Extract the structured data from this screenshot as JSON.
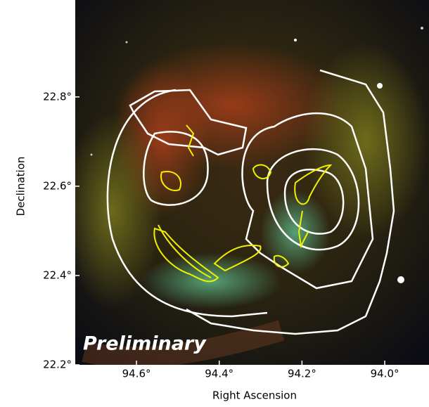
{
  "chart_data": {
    "type": "image",
    "xlabel": "Right Ascension",
    "ylabel": "Declination",
    "annotation": "Preliminary",
    "xlim": [
      94.748,
      93.893
    ],
    "ylim": [
      22.2,
      23.017
    ],
    "xticks": [
      {
        "value": 94.6,
        "label": "94.6°"
      },
      {
        "value": 94.4,
        "label": "94.4°"
      },
      {
        "value": 94.2,
        "label": "94.2°"
      },
      {
        "value": 94.0,
        "label": "94.0°"
      }
    ],
    "yticks": [
      {
        "value": 22.2,
        "label": "22.2°"
      },
      {
        "value": 22.4,
        "label": "22.4°"
      },
      {
        "value": 22.6,
        "label": "22.6°"
      },
      {
        "value": 22.8,
        "label": "22.8°"
      }
    ]
  }
}
